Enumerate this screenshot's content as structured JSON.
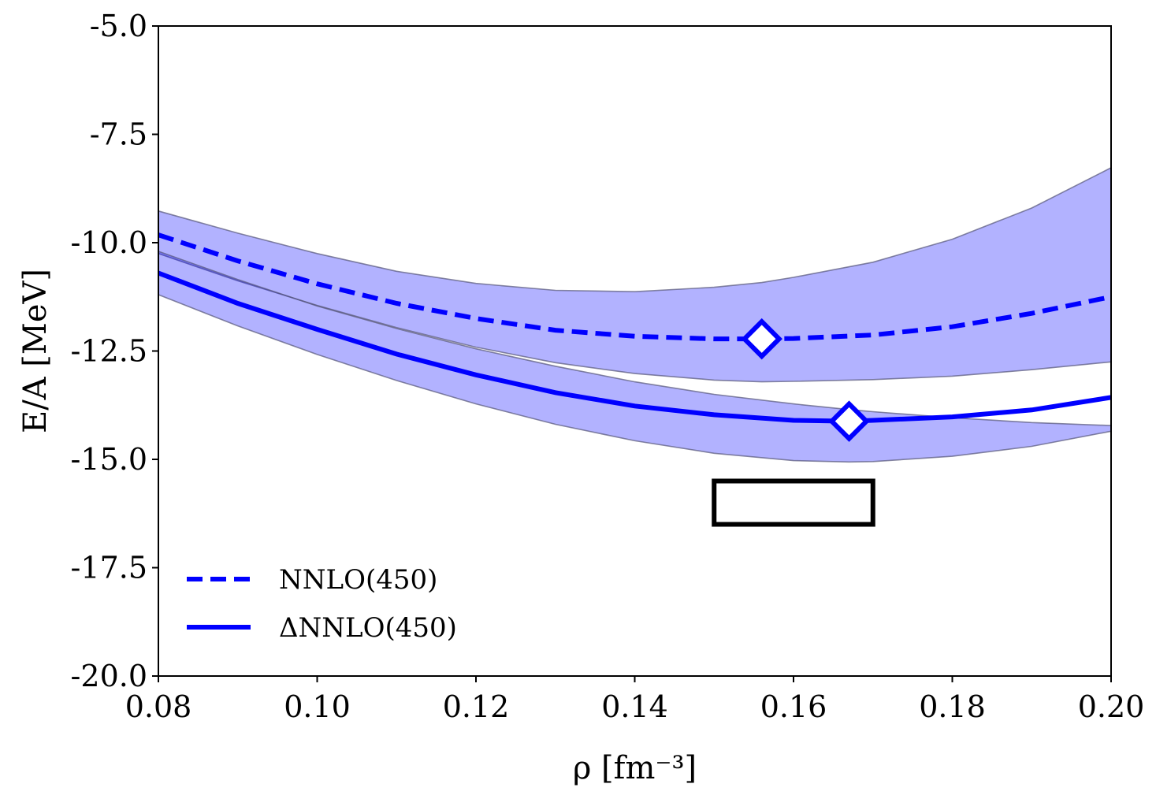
{
  "chart_data": {
    "type": "line",
    "xlabel": "ρ [fm⁻³]",
    "ylabel": "E/A [MeV]",
    "xlim": [
      0.08,
      0.2
    ],
    "ylim": [
      -20.0,
      -5.0
    ],
    "x_ticks": [
      0.08,
      0.1,
      0.12,
      0.14,
      0.16,
      0.18,
      0.2
    ],
    "x_tick_labels": [
      "0.08",
      "0.10",
      "0.12",
      "0.14",
      "0.16",
      "0.18",
      "0.20"
    ],
    "y_ticks": [
      -20.0,
      -17.5,
      -15.0,
      -12.5,
      -10.0,
      -7.5,
      -5.0
    ],
    "y_tick_labels": [
      "-20.0",
      "-17.5",
      "-15.0",
      "-12.5",
      "-10.0",
      "-7.5",
      "-5.0"
    ],
    "grid": false,
    "legend_position": "bottom-left",
    "colors": {
      "series": "#0000ff",
      "band": "#0000ff",
      "band_edge": "#555577"
    },
    "series": [
      {
        "name": "NNLO(450)",
        "style": "dashed",
        "x": [
          0.08,
          0.09,
          0.1,
          0.11,
          0.12,
          0.13,
          0.14,
          0.15,
          0.156,
          0.16,
          0.17,
          0.18,
          0.19,
          0.2
        ],
        "y": [
          -9.82,
          -10.42,
          -10.95,
          -11.4,
          -11.75,
          -12.02,
          -12.16,
          -12.22,
          -12.22,
          -12.21,
          -12.13,
          -11.94,
          -11.63,
          -11.25
        ],
        "band_upper": [
          -9.27,
          -9.78,
          -10.25,
          -10.66,
          -10.94,
          -11.1,
          -11.13,
          -11.03,
          -10.92,
          -10.8,
          -10.45,
          -9.92,
          -9.2,
          -8.27
        ],
        "band_lower": [
          -10.25,
          -10.88,
          -11.45,
          -11.96,
          -12.41,
          -12.77,
          -13.02,
          -13.17,
          -13.21,
          -13.2,
          -13.16,
          -13.08,
          -12.93,
          -12.75
        ],
        "saturation_point": {
          "x": 0.156,
          "y": -12.22
        }
      },
      {
        "name": "ΔNNLO(450)",
        "style": "solid",
        "x": [
          0.08,
          0.09,
          0.1,
          0.11,
          0.12,
          0.13,
          0.14,
          0.15,
          0.16,
          0.167,
          0.17,
          0.18,
          0.19,
          0.2
        ],
        "y": [
          -10.7,
          -11.4,
          -12.0,
          -12.57,
          -13.05,
          -13.46,
          -13.77,
          -13.97,
          -14.1,
          -14.12,
          -14.1,
          -14.02,
          -13.86,
          -13.57
        ],
        "band_upper": [
          -10.2,
          -10.85,
          -11.46,
          -11.98,
          -12.45,
          -12.85,
          -13.21,
          -13.5,
          -13.72,
          -13.85,
          -13.9,
          -14.04,
          -14.15,
          -14.22
        ],
        "band_lower": [
          -11.2,
          -11.92,
          -12.58,
          -13.18,
          -13.72,
          -14.19,
          -14.57,
          -14.86,
          -15.03,
          -15.06,
          -15.05,
          -14.93,
          -14.7,
          -14.35
        ],
        "saturation_point": {
          "x": 0.167,
          "y": -14.12
        }
      }
    ],
    "empirical_box": {
      "x": [
        0.15,
        0.17
      ],
      "y": [
        -16.5,
        -15.5
      ]
    }
  }
}
